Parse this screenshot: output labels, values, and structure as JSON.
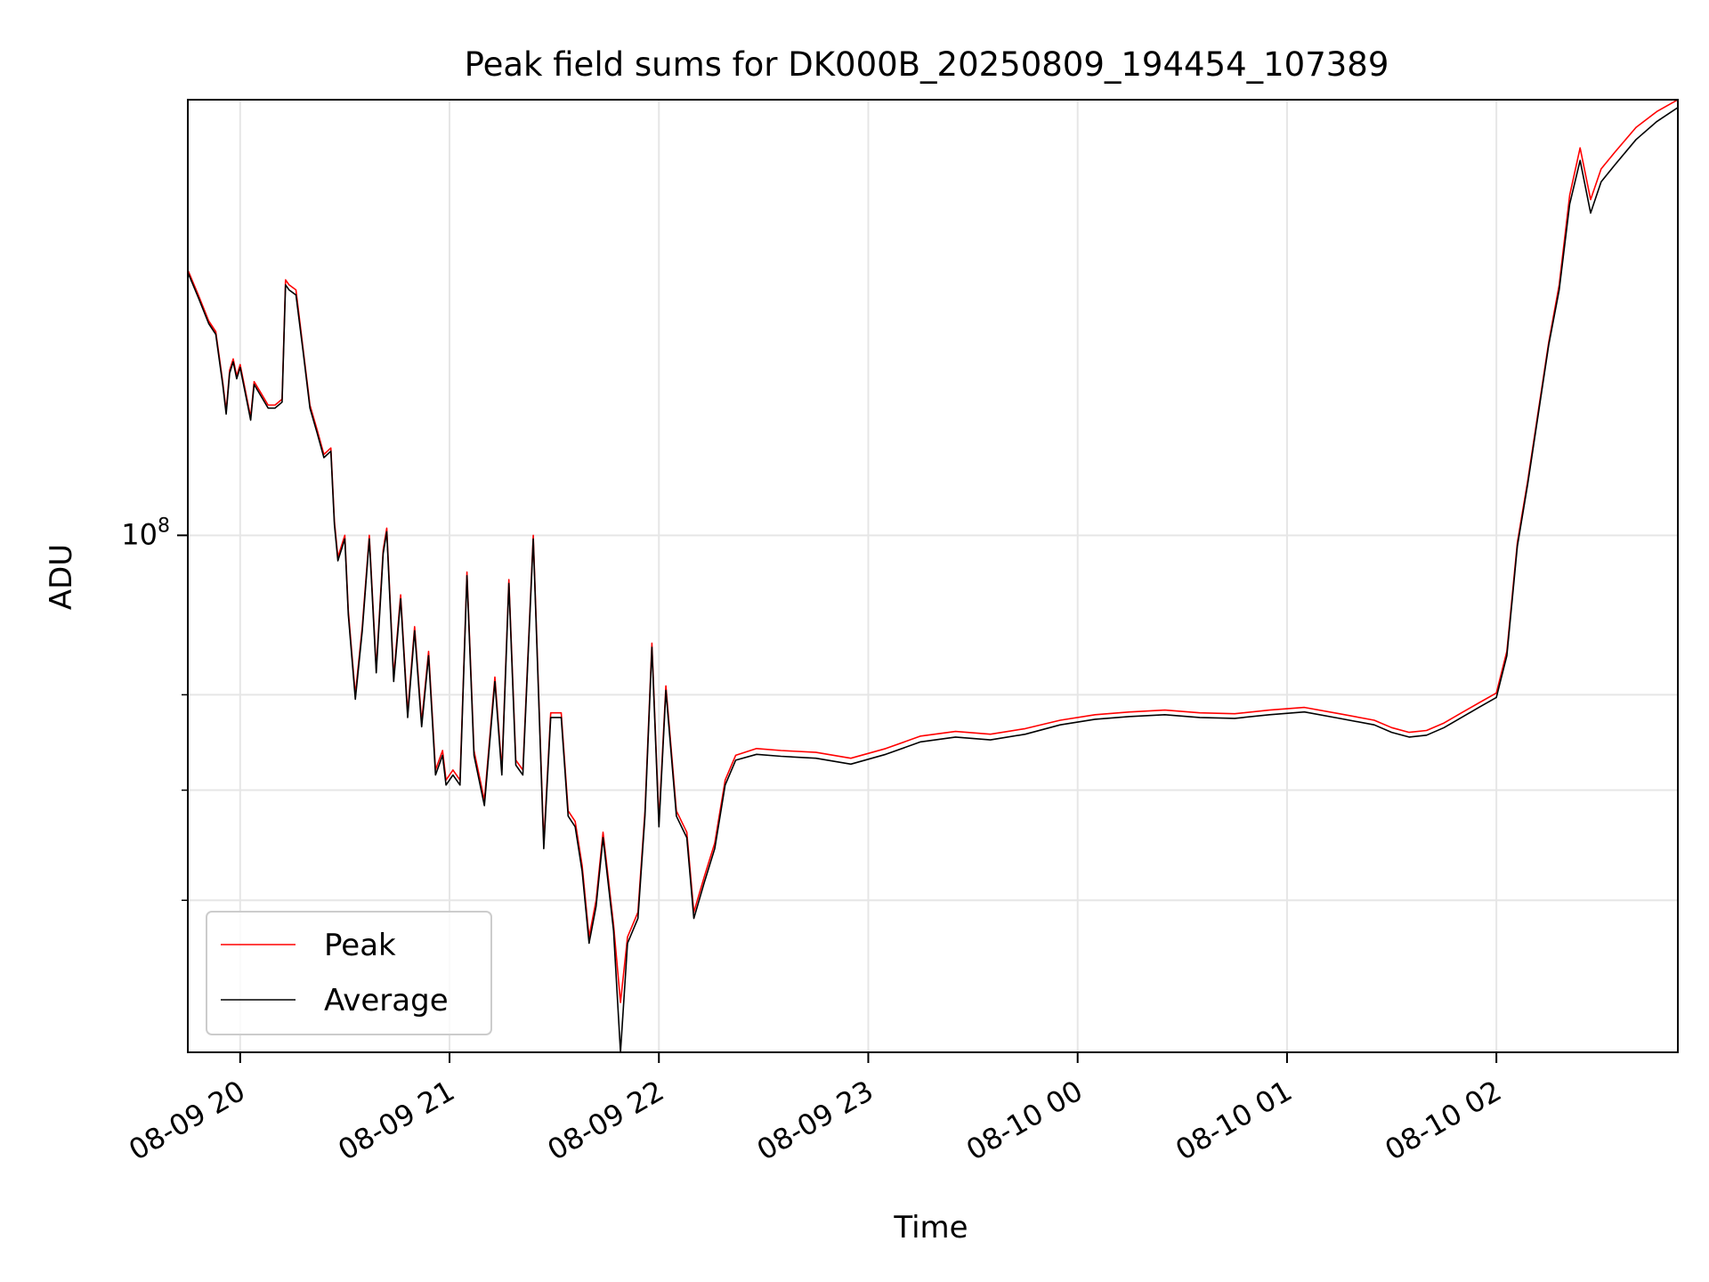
{
  "chart_data": {
    "type": "line",
    "title": "Peak field sums for DK000B_20250809_194454_107389",
    "xlabel": "Time",
    "ylabel": "ADU",
    "y_scale": "log",
    "y_tick_label_base": "10",
    "y_tick_label_exp": "8",
    "y_major_tick": 100000000,
    "y_minor_ticks": [
      60000000,
      70000000,
      80000000
    ],
    "ylim": [
      48500000,
      184000000
    ],
    "xlim": [
      "2025-08-09 19:45",
      "2025-08-10 02:52"
    ],
    "x_ticks": [
      "2025-08-09 20:00",
      "2025-08-09 21:00",
      "2025-08-09 22:00",
      "2025-08-09 23:00",
      "2025-08-10 00:00",
      "2025-08-10 01:00",
      "2025-08-10 02:00"
    ],
    "x_tick_labels": [
      "08-09 20",
      "08-09 21",
      "08-09 22",
      "08-09 23",
      "08-10 00",
      "08-10 01",
      "08-10 02"
    ],
    "grid": true,
    "legend_position": "lower-left",
    "series": [
      {
        "name": "Peak",
        "color": "#ff0000",
        "points": [
          [
            "2025-08-09 19:45",
            145000000
          ],
          [
            "2025-08-09 19:48",
            140000000
          ],
          [
            "2025-08-09 19:51",
            135000000
          ],
          [
            "2025-08-09 19:53",
            133000000
          ],
          [
            "2025-08-09 19:55",
            124000000
          ],
          [
            "2025-08-09 19:56",
            119000000
          ],
          [
            "2025-08-09 19:57",
            126000000
          ],
          [
            "2025-08-09 19:58",
            128000000
          ],
          [
            "2025-08-09 19:59",
            125000000
          ],
          [
            "2025-08-09 20:00",
            127000000
          ],
          [
            "2025-08-09 20:02",
            121000000
          ],
          [
            "2025-08-09 20:03",
            118000000
          ],
          [
            "2025-08-09 20:04",
            124000000
          ],
          [
            "2025-08-09 20:06",
            122000000
          ],
          [
            "2025-08-09 20:08",
            120000000
          ],
          [
            "2025-08-09 20:10",
            120000000
          ],
          [
            "2025-08-09 20:12",
            121000000
          ],
          [
            "2025-08-09 20:13",
            143000000
          ],
          [
            "2025-08-09 20:14",
            142000000
          ],
          [
            "2025-08-09 20:16",
            141000000
          ],
          [
            "2025-08-09 20:18",
            130000000
          ],
          [
            "2025-08-09 20:20",
            120000000
          ],
          [
            "2025-08-09 20:22",
            116000000
          ],
          [
            "2025-08-09 20:24",
            112000000
          ],
          [
            "2025-08-09 20:26",
            113000000
          ],
          [
            "2025-08-09 20:27",
            102000000
          ],
          [
            "2025-08-09 20:28",
            97000000
          ],
          [
            "2025-08-09 20:30",
            100000000
          ],
          [
            "2025-08-09 20:31",
            90000000
          ],
          [
            "2025-08-09 20:33",
            80000000
          ],
          [
            "2025-08-09 20:35",
            88000000
          ],
          [
            "2025-08-09 20:37",
            100000000
          ],
          [
            "2025-08-09 20:39",
            83000000
          ],
          [
            "2025-08-09 20:41",
            98000000
          ],
          [
            "2025-08-09 20:42",
            101000000
          ],
          [
            "2025-08-09 20:44",
            82000000
          ],
          [
            "2025-08-09 20:46",
            92000000
          ],
          [
            "2025-08-09 20:48",
            78000000
          ],
          [
            "2025-08-09 20:50",
            88000000
          ],
          [
            "2025-08-09 20:52",
            77000000
          ],
          [
            "2025-08-09 20:54",
            85000000
          ],
          [
            "2025-08-09 20:56",
            72000000
          ],
          [
            "2025-08-09 20:58",
            74000000
          ],
          [
            "2025-08-09 20:59",
            71000000
          ],
          [
            "2025-08-09 21:01",
            72000000
          ],
          [
            "2025-08-09 21:03",
            71000000
          ],
          [
            "2025-08-09 21:05",
            95000000
          ],
          [
            "2025-08-09 21:07",
            74000000
          ],
          [
            "2025-08-09 21:10",
            69000000
          ],
          [
            "2025-08-09 21:13",
            82000000
          ],
          [
            "2025-08-09 21:15",
            72000000
          ],
          [
            "2025-08-09 21:17",
            94000000
          ],
          [
            "2025-08-09 21:19",
            73000000
          ],
          [
            "2025-08-09 21:21",
            72000000
          ],
          [
            "2025-08-09 21:24",
            100000000
          ],
          [
            "2025-08-09 21:27",
            65000000
          ],
          [
            "2025-08-09 21:29",
            78000000
          ],
          [
            "2025-08-09 21:32",
            78000000
          ],
          [
            "2025-08-09 21:34",
            68000000
          ],
          [
            "2025-08-09 21:36",
            67000000
          ],
          [
            "2025-08-09 21:38",
            63000000
          ],
          [
            "2025-08-09 21:40",
            57000000
          ],
          [
            "2025-08-09 21:42",
            60000000
          ],
          [
            "2025-08-09 21:44",
            66000000
          ],
          [
            "2025-08-09 21:47",
            58000000
          ],
          [
            "2025-08-09 21:49",
            52000000
          ],
          [
            "2025-08-09 21:51",
            57000000
          ],
          [
            "2025-08-09 21:54",
            59000000
          ],
          [
            "2025-08-09 21:56",
            68000000
          ],
          [
            "2025-08-09 21:58",
            86000000
          ],
          [
            "2025-08-09 22:00",
            67000000
          ],
          [
            "2025-08-09 22:02",
            81000000
          ],
          [
            "2025-08-09 22:05",
            68000000
          ],
          [
            "2025-08-09 22:08",
            66000000
          ],
          [
            "2025-08-09 22:10",
            59000000
          ],
          [
            "2025-08-09 22:13",
            62000000
          ],
          [
            "2025-08-09 22:16",
            65000000
          ],
          [
            "2025-08-09 22:19",
            71000000
          ],
          [
            "2025-08-09 22:22",
            73500000
          ],
          [
            "2025-08-09 22:28",
            74200000
          ],
          [
            "2025-08-09 22:35",
            74000000
          ],
          [
            "2025-08-09 22:45",
            73800000
          ],
          [
            "2025-08-09 22:55",
            73200000
          ],
          [
            "2025-08-09 23:05",
            74200000
          ],
          [
            "2025-08-09 23:15",
            75500000
          ],
          [
            "2025-08-09 23:25",
            76000000
          ],
          [
            "2025-08-09 23:35",
            75700000
          ],
          [
            "2025-08-09 23:45",
            76300000
          ],
          [
            "2025-08-09 23:55",
            77200000
          ],
          [
            "2025-08-10 00:05",
            77800000
          ],
          [
            "2025-08-10 00:15",
            78100000
          ],
          [
            "2025-08-10 00:25",
            78300000
          ],
          [
            "2025-08-10 00:35",
            78000000
          ],
          [
            "2025-08-10 00:45",
            77900000
          ],
          [
            "2025-08-10 00:55",
            78300000
          ],
          [
            "2025-08-10 01:05",
            78600000
          ],
          [
            "2025-08-10 01:15",
            77900000
          ],
          [
            "2025-08-10 01:25",
            77200000
          ],
          [
            "2025-08-10 01:30",
            76400000
          ],
          [
            "2025-08-10 01:35",
            75900000
          ],
          [
            "2025-08-10 01:40",
            76100000
          ],
          [
            "2025-08-10 01:45",
            76900000
          ],
          [
            "2025-08-10 01:50",
            78000000
          ],
          [
            "2025-08-10 01:55",
            79100000
          ],
          [
            "2025-08-10 02:00",
            80200000
          ],
          [
            "2025-08-10 02:03",
            85000000
          ],
          [
            "2025-08-10 02:06",
            99000000
          ],
          [
            "2025-08-10 02:09",
            108000000
          ],
          [
            "2025-08-10 02:12",
            119000000
          ],
          [
            "2025-08-10 02:15",
            131000000
          ],
          [
            "2025-08-10 02:18",
            142000000
          ],
          [
            "2025-08-10 02:21",
            161000000
          ],
          [
            "2025-08-10 02:24",
            172000000
          ],
          [
            "2025-08-10 02:27",
            160000000
          ],
          [
            "2025-08-10 02:30",
            167000000
          ],
          [
            "2025-08-10 02:34",
            171000000
          ],
          [
            "2025-08-10 02:40",
            177000000
          ],
          [
            "2025-08-10 02:46",
            181000000
          ],
          [
            "2025-08-10 02:52",
            184000000
          ]
        ]
      },
      {
        "name": "Average",
        "color": "#000000",
        "points": [
          [
            "2025-08-09 19:45",
            144500000
          ],
          [
            "2025-08-09 19:48",
            139500000
          ],
          [
            "2025-08-09 19:51",
            134500000
          ],
          [
            "2025-08-09 19:53",
            132500000
          ],
          [
            "2025-08-09 19:55",
            123500000
          ],
          [
            "2025-08-09 19:56",
            118500000
          ],
          [
            "2025-08-09 19:57",
            125500000
          ],
          [
            "2025-08-09 19:58",
            127500000
          ],
          [
            "2025-08-09 19:59",
            124500000
          ],
          [
            "2025-08-09 20:00",
            126500000
          ],
          [
            "2025-08-09 20:02",
            120500000
          ],
          [
            "2025-08-09 20:03",
            117500000
          ],
          [
            "2025-08-09 20:04",
            123500000
          ],
          [
            "2025-08-09 20:06",
            121500000
          ],
          [
            "2025-08-09 20:08",
            119500000
          ],
          [
            "2025-08-09 20:10",
            119500000
          ],
          [
            "2025-08-09 20:12",
            120500000
          ],
          [
            "2025-08-09 20:13",
            142000000
          ],
          [
            "2025-08-09 20:14",
            141000000
          ],
          [
            "2025-08-09 20:16",
            140000000
          ],
          [
            "2025-08-09 20:18",
            129500000
          ],
          [
            "2025-08-09 20:20",
            119500000
          ],
          [
            "2025-08-09 20:22",
            115500000
          ],
          [
            "2025-08-09 20:24",
            111500000
          ],
          [
            "2025-08-09 20:26",
            112500000
          ],
          [
            "2025-08-09 20:27",
            101500000
          ],
          [
            "2025-08-09 20:28",
            96500000
          ],
          [
            "2025-08-09 20:30",
            99500000
          ],
          [
            "2025-08-09 20:31",
            89500000
          ],
          [
            "2025-08-09 20:33",
            79500000
          ],
          [
            "2025-08-09 20:35",
            87500000
          ],
          [
            "2025-08-09 20:37",
            99500000
          ],
          [
            "2025-08-09 20:39",
            82500000
          ],
          [
            "2025-08-09 20:41",
            97500000
          ],
          [
            "2025-08-09 20:42",
            100500000
          ],
          [
            "2025-08-09 20:44",
            81500000
          ],
          [
            "2025-08-09 20:46",
            91500000
          ],
          [
            "2025-08-09 20:48",
            77500000
          ],
          [
            "2025-08-09 20:50",
            87500000
          ],
          [
            "2025-08-09 20:52",
            76500000
          ],
          [
            "2025-08-09 20:54",
            84500000
          ],
          [
            "2025-08-09 20:56",
            71500000
          ],
          [
            "2025-08-09 20:58",
            73500000
          ],
          [
            "2025-08-09 20:59",
            70500000
          ],
          [
            "2025-08-09 21:01",
            71500000
          ],
          [
            "2025-08-09 21:03",
            70500000
          ],
          [
            "2025-08-09 21:05",
            94500000
          ],
          [
            "2025-08-09 21:07",
            73500000
          ],
          [
            "2025-08-09 21:10",
            68500000
          ],
          [
            "2025-08-09 21:13",
            81500000
          ],
          [
            "2025-08-09 21:15",
            71500000
          ],
          [
            "2025-08-09 21:17",
            93500000
          ],
          [
            "2025-08-09 21:19",
            72500000
          ],
          [
            "2025-08-09 21:21",
            71500000
          ],
          [
            "2025-08-09 21:24",
            99500000
          ],
          [
            "2025-08-09 21:27",
            64500000
          ],
          [
            "2025-08-09 21:29",
            77500000
          ],
          [
            "2025-08-09 21:32",
            77500000
          ],
          [
            "2025-08-09 21:34",
            67500000
          ],
          [
            "2025-08-09 21:36",
            66500000
          ],
          [
            "2025-08-09 21:38",
            62500000
          ],
          [
            "2025-08-09 21:40",
            56500000
          ],
          [
            "2025-08-09 21:42",
            59500000
          ],
          [
            "2025-08-09 21:44",
            65500000
          ],
          [
            "2025-08-09 21:47",
            57500000
          ],
          [
            "2025-08-09 21:49",
            48500000
          ],
          [
            "2025-08-09 21:51",
            56500000
          ],
          [
            "2025-08-09 21:54",
            58500000
          ],
          [
            "2025-08-09 21:56",
            67500000
          ],
          [
            "2025-08-09 21:58",
            85500000
          ],
          [
            "2025-08-09 22:00",
            66500000
          ],
          [
            "2025-08-09 22:02",
            80500000
          ],
          [
            "2025-08-09 22:05",
            67500000
          ],
          [
            "2025-08-09 22:08",
            65500000
          ],
          [
            "2025-08-09 22:10",
            58500000
          ],
          [
            "2025-08-09 22:13",
            61500000
          ],
          [
            "2025-08-09 22:16",
            64500000
          ],
          [
            "2025-08-09 22:19",
            70500000
          ],
          [
            "2025-08-09 22:22",
            73000000
          ],
          [
            "2025-08-09 22:28",
            73600000
          ],
          [
            "2025-08-09 22:35",
            73400000
          ],
          [
            "2025-08-09 22:45",
            73200000
          ],
          [
            "2025-08-09 22:55",
            72600000
          ],
          [
            "2025-08-09 23:05",
            73600000
          ],
          [
            "2025-08-09 23:15",
            74900000
          ],
          [
            "2025-08-09 23:25",
            75400000
          ],
          [
            "2025-08-09 23:35",
            75100000
          ],
          [
            "2025-08-09 23:45",
            75700000
          ],
          [
            "2025-08-09 23:55",
            76700000
          ],
          [
            "2025-08-10 00:05",
            77300000
          ],
          [
            "2025-08-10 00:15",
            77600000
          ],
          [
            "2025-08-10 00:25",
            77800000
          ],
          [
            "2025-08-10 00:35",
            77500000
          ],
          [
            "2025-08-10 00:45",
            77400000
          ],
          [
            "2025-08-10 00:55",
            77800000
          ],
          [
            "2025-08-10 01:05",
            78100000
          ],
          [
            "2025-08-10 01:15",
            77400000
          ],
          [
            "2025-08-10 01:25",
            76700000
          ],
          [
            "2025-08-10 01:30",
            75900000
          ],
          [
            "2025-08-10 01:35",
            75400000
          ],
          [
            "2025-08-10 01:40",
            75600000
          ],
          [
            "2025-08-10 01:45",
            76400000
          ],
          [
            "2025-08-10 01:50",
            77500000
          ],
          [
            "2025-08-10 01:55",
            78600000
          ],
          [
            "2025-08-10 02:00",
            79700000
          ],
          [
            "2025-08-10 02:03",
            84500000
          ],
          [
            "2025-08-10 02:06",
            98500000
          ],
          [
            "2025-08-10 02:09",
            107500000
          ],
          [
            "2025-08-10 02:12",
            118500000
          ],
          [
            "2025-08-10 02:15",
            130500000
          ],
          [
            "2025-08-10 02:18",
            141000000
          ],
          [
            "2025-08-10 02:21",
            159000000
          ],
          [
            "2025-08-10 02:24",
            169000000
          ],
          [
            "2025-08-10 02:27",
            157000000
          ],
          [
            "2025-08-10 02:30",
            164000000
          ],
          [
            "2025-08-10 02:34",
            168000000
          ],
          [
            "2025-08-10 02:40",
            174000000
          ],
          [
            "2025-08-10 02:46",
            178500000
          ],
          [
            "2025-08-10 02:52",
            182000000
          ]
        ]
      }
    ]
  }
}
